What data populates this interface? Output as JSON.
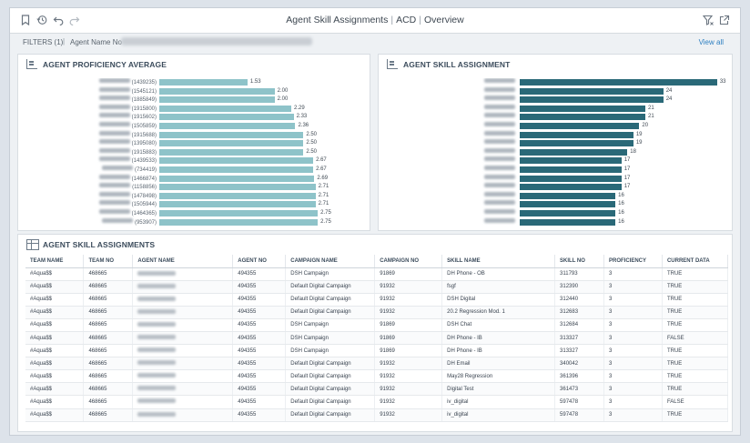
{
  "app": {
    "title_main": "Agent Skill Assignments",
    "title_sub1": "ACD",
    "title_sub2": "Overview"
  },
  "filters": {
    "label": "FILTERS (1)",
    "name_label": "Agent Name No",
    "view_all": "View all"
  },
  "proficiency_panel": {
    "title": "AGENT PROFICIENCY AVERAGE",
    "bar_color": "#8ec3c9"
  },
  "skill_panel": {
    "title": "AGENT SKILL ASSIGNMENT",
    "bar_color": "#2a6978"
  },
  "chart_data": [
    {
      "type": "bar",
      "orientation": "horizontal",
      "title": "AGENT PROFICIENCY AVERAGE",
      "categories": [
        "(1439235)",
        "(1545121)",
        "(1885849)",
        "(1915800)",
        "(1915602)",
        "(1505859)",
        "(1915688)",
        "(1395080)",
        "(1915883)",
        "(1439533)",
        "(734419)",
        "(1466874)",
        "(1158856)",
        "(1478498)",
        "(1505944)",
        "(1464365)",
        "(953907)"
      ],
      "values": [
        1.53,
        2.0,
        2.0,
        2.29,
        2.33,
        2.36,
        2.5,
        2.5,
        2.5,
        2.67,
        2.67,
        2.69,
        2.71,
        2.71,
        2.71,
        2.75,
        2.75
      ],
      "value_labels": [
        "1.53",
        "2.00",
        "2.00",
        "2.29",
        "2.33",
        "2.36",
        "2.50",
        "2.50",
        "2.50",
        "2.67",
        "2.67",
        "2.69",
        "2.71",
        "2.71",
        "2.71",
        "2.75",
        "2.75"
      ],
      "xlim": [
        0,
        3
      ]
    },
    {
      "type": "bar",
      "orientation": "horizontal",
      "title": "AGENT SKILL ASSIGNMENT",
      "values": [
        33,
        24,
        24,
        21,
        21,
        20,
        19,
        19,
        18,
        17,
        17,
        17,
        17,
        16,
        16,
        16,
        16
      ],
      "xlim": [
        0,
        35
      ]
    }
  ],
  "table": {
    "title": "AGENT SKILL ASSIGNMENTS",
    "columns": [
      "TEAM NAME",
      "TEAM NO",
      "AGENT NAME",
      "AGENT NO",
      "CAMPAIGN NAME",
      "CAMPAIGN NO",
      "SKILL NAME",
      "SKILL NO",
      "PROFICIENCY",
      "CURRENT DATA"
    ],
    "rows": [
      [
        "#Aqua$$",
        "468665",
        "",
        "494355",
        "DSH Campaign",
        "91869",
        "DH Phone - OB",
        "311793",
        "3",
        "TRUE"
      ],
      [
        "#Aqua$$",
        "468665",
        "",
        "494355",
        "Default Digital Campaign",
        "91932",
        "fsgf",
        "312390",
        "3",
        "TRUE"
      ],
      [
        "#Aqua$$",
        "468665",
        "",
        "494355",
        "Default Digital Campaign",
        "91932",
        "DSH Digital",
        "312440",
        "3",
        "TRUE"
      ],
      [
        "#Aqua$$",
        "468665",
        "",
        "494355",
        "Default Digital Campaign",
        "91932",
        "20.2 Regression Mod. 1",
        "312683",
        "3",
        "TRUE"
      ],
      [
        "#Aqua$$",
        "468665",
        "",
        "494355",
        "DSH Campaign",
        "91869",
        "DSH Chat",
        "312684",
        "3",
        "TRUE"
      ],
      [
        "#Aqua$$",
        "468665",
        "",
        "494355",
        "DSH Campaign",
        "91869",
        "DH Phone - IB",
        "313327",
        "3",
        "FALSE"
      ],
      [
        "#Aqua$$",
        "468665",
        "",
        "494355",
        "DSH Campaign",
        "91869",
        "DH Phone - IB",
        "313327",
        "3",
        "TRUE"
      ],
      [
        "#Aqua$$",
        "468665",
        "",
        "494355",
        "Default Digital Campaign",
        "91932",
        "DH Email",
        "340042",
        "3",
        "TRUE"
      ],
      [
        "#Aqua$$",
        "468665",
        "",
        "494355",
        "Default Digital Campaign",
        "91932",
        "May28 Regression",
        "361396",
        "3",
        "TRUE"
      ],
      [
        "#Aqua$$",
        "468665",
        "",
        "494355",
        "Default Digital Campaign",
        "91932",
        "Digital Test",
        "361473",
        "3",
        "TRUE"
      ],
      [
        "#Aqua$$",
        "468665",
        "",
        "494355",
        "Default Digital Campaign",
        "91932",
        "iv_digital",
        "597478",
        "3",
        "FALSE"
      ],
      [
        "#Aqua$$",
        "468665",
        "",
        "494355",
        "Default Digital Campaign",
        "91932",
        "iv_digital",
        "597478",
        "3",
        "TRUE"
      ]
    ]
  }
}
